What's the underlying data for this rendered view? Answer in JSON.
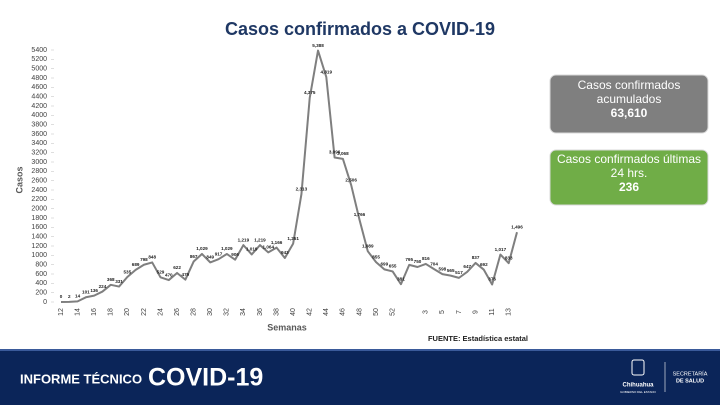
{
  "chart_data": {
    "type": "line",
    "title": "Casos confirmados a COVID-19",
    "y_label": "Casos",
    "x_label": "Semanas",
    "source": "FUENTE: Estadística estatal",
    "categories": [
      "12",
      null,
      "14",
      null,
      "16",
      null,
      "18",
      null,
      "20",
      null,
      "22",
      null,
      "24",
      null,
      "26",
      null,
      "28",
      null,
      "30",
      null,
      "32",
      null,
      "34",
      null,
      "36",
      null,
      "38",
      null,
      "40",
      null,
      "42",
      null,
      "44",
      null,
      "46",
      null,
      "48",
      null,
      "50",
      null,
      "52",
      null,
      null,
      null,
      "3",
      null,
      "5",
      null,
      "7",
      null,
      "9",
      null,
      "11",
      null,
      "13",
      null
    ],
    "values": [
      0,
      2,
      14,
      101,
      136,
      224,
      368,
      331,
      535,
      689,
      798,
      848,
      529,
      470,
      622,
      479,
      867,
      1029,
      849,
      917,
      1029,
      906,
      1219,
      1019,
      1219,
      1064,
      1166,
      943,
      1251,
      2313,
      4375,
      5388,
      4819,
      3096,
      3068,
      2506,
      1766,
      1089,
      855,
      699,
      655,
      381,
      795,
      750,
      816,
      704,
      598,
      565,
      517,
      647,
      837,
      692,
      376,
      1017,
      833,
      1496
    ],
    "value_labels": [
      "0",
      "2",
      "14",
      "101",
      "136",
      "224",
      "368",
      "331",
      "535",
      "689",
      "798",
      "848",
      "529",
      "470",
      "622",
      "479",
      "867",
      "1,029",
      "849",
      "917",
      "1,029",
      "906",
      "1,219",
      "1,019",
      "1,219",
      "1,064",
      "1,166",
      "943",
      "1,251",
      "2,313",
      "4,375",
      "5,388",
      "4,819",
      "3,096",
      "3,068",
      "2,506",
      "1,766",
      "1,089",
      "855",
      "699",
      "655",
      "381",
      "795",
      "750",
      "816",
      "704",
      "598",
      "565",
      "517",
      "647",
      "837",
      "692",
      "376",
      "1,017",
      "833",
      "1,496"
    ],
    "color": "#7f7f7f",
    "ylim": [
      0,
      5400
    ],
    "yticks": [
      0,
      200,
      400,
      600,
      800,
      1000,
      1200,
      1400,
      1600,
      1800,
      2000,
      2200,
      2400,
      2600,
      2800,
      3000,
      3200,
      3400,
      3600,
      3800,
      4000,
      4200,
      4400,
      4600,
      4800,
      5000,
      5200,
      5400
    ],
    "grid": false
  },
  "panels": [
    {
      "label": "Casos confirmados acumulados",
      "value": "63,610"
    },
    {
      "label": "Casos confirmados últimas 24 hrs.",
      "value": "236"
    }
  ],
  "footer": {
    "report": "INFORME TÉCNICO",
    "topic": "COVID-19",
    "state": "Chihuahua",
    "government": "GOBIERNO DEL ESTADO",
    "ministry_1": "SECRETARÍA",
    "ministry_2": "DE SALUD"
  }
}
